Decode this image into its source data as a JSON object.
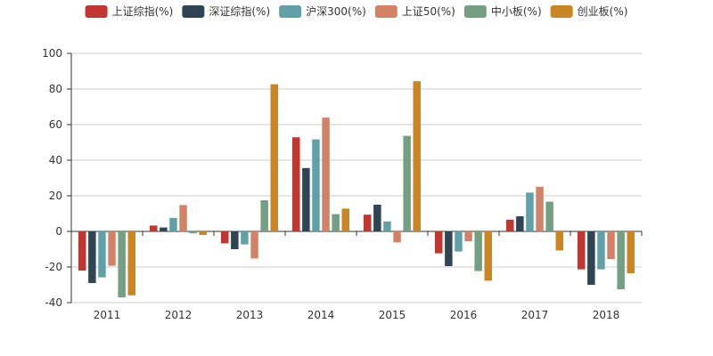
{
  "chart_data": {
    "type": "bar",
    "categories": [
      "2011",
      "2012",
      "2013",
      "2014",
      "2015",
      "2016",
      "2017",
      "2018"
    ],
    "series": [
      {
        "name": "上证综指(%)",
        "color": "#c23531",
        "values": [
          -22,
          3.3,
          -6.7,
          52.9,
          9.4,
          -12.3,
          6.6,
          -21.3
        ]
      },
      {
        "name": "深证综指(%)",
        "color": "#2f4554",
        "values": [
          -29,
          2.2,
          -10,
          35.6,
          15,
          -19.5,
          8.5,
          -30
        ]
      },
      {
        "name": "沪深300(%)",
        "color": "#61a0a8",
        "values": [
          -25.8,
          7.6,
          -7.3,
          51.7,
          5.6,
          -11.3,
          21.8,
          -21.3
        ]
      },
      {
        "name": "上证50(%)",
        "color": "#d48265",
        "values": [
          -19.3,
          14.8,
          -15.2,
          63.9,
          -6.2,
          -5.5,
          25.1,
          -15.5
        ]
      },
      {
        "name": "中小板(%)",
        "color": "#749f83",
        "values": [
          -37.1,
          -1.1,
          17.5,
          9.7,
          53.7,
          -22.3,
          16.7,
          -32.5
        ]
      },
      {
        "name": "创业板(%)",
        "color": "#ca8622",
        "values": [
          -35.9,
          -2,
          82.7,
          12.8,
          84.4,
          -27.7,
          -10.7,
          -23.5
        ]
      }
    ],
    "ylim": [
      -40,
      100
    ],
    "yticks": [
      -40,
      -20,
      0,
      20,
      40,
      60,
      80,
      100
    ],
    "grid": true,
    "legend_position": "top-center"
  }
}
